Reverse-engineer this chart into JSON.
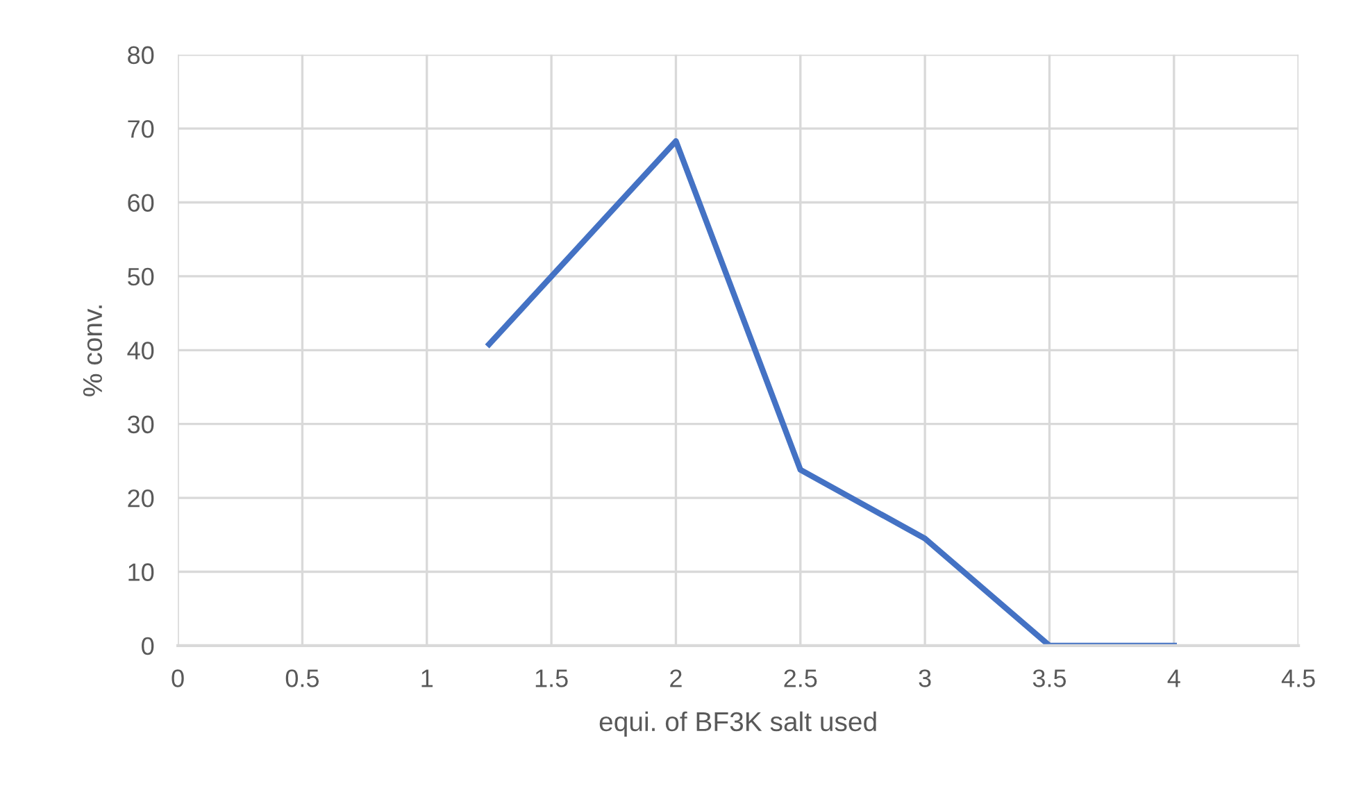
{
  "chart_data": {
    "type": "line",
    "xlabel": "equi. of BF3K salt used",
    "ylabel": "% conv.",
    "x": [
      1.25,
      2,
      2.5,
      3,
      3.5,
      4
    ],
    "series": [
      {
        "color": "#4472c4",
        "values": [
          40.8,
          68.3,
          23.8,
          14.5,
          0,
          0
        ]
      }
    ],
    "xlim": [
      0,
      4.5
    ],
    "xticks": [
      0,
      0.5,
      1,
      1.5,
      2,
      2.5,
      3,
      3.5,
      4,
      4.5
    ],
    "ylim": [
      0,
      80
    ],
    "yticks": [
      0,
      10,
      20,
      30,
      40,
      50,
      60,
      70,
      80
    ],
    "grid": true,
    "marker": "none",
    "line_style": "solid"
  }
}
